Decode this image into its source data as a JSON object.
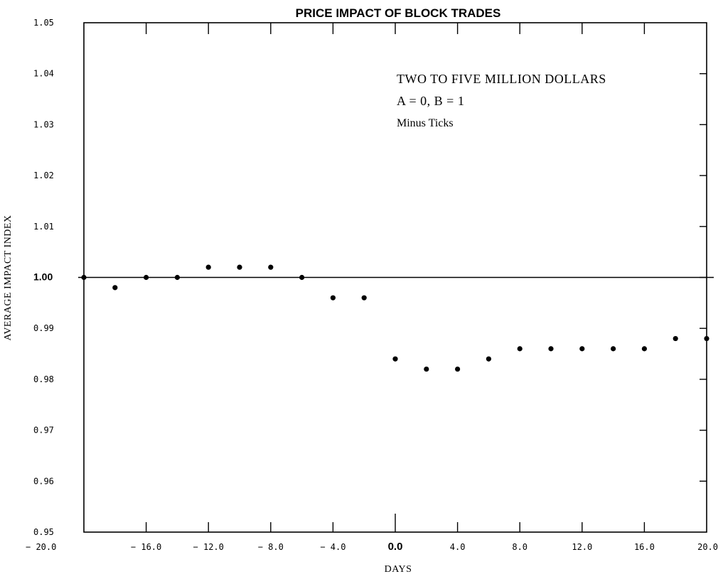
{
  "chart_data": {
    "type": "scatter",
    "title": "PRICE IMPACT OF BLOCK TRADES",
    "xlabel": "DAYS",
    "ylabel": "AVERAGE IMPACT INDEX",
    "xlim": [
      -20,
      20
    ],
    "ylim": [
      0.95,
      1.05
    ],
    "grid": false,
    "reference_line_y": 1.0,
    "x_ticks": [
      -20,
      -16,
      -12,
      -8,
      -4,
      0,
      4,
      8,
      12,
      16,
      20
    ],
    "x_tick_labels": [
      "− 20.0",
      "− 16.0",
      "− 12.0",
      "− 8.0",
      "− 4.0",
      "0.0",
      "4.0",
      "8.0",
      "12.0",
      "16.0",
      "20.0"
    ],
    "y_ticks": [
      0.95,
      0.96,
      0.97,
      0.98,
      0.99,
      1.0,
      1.01,
      1.02,
      1.03,
      1.04,
      1.05
    ],
    "y_tick_labels": [
      "0.95",
      "0.96",
      "0.97",
      "0.98",
      "0.99",
      "1.00",
      "1.01",
      "1.02",
      "1.03",
      "1.04",
      "1.05"
    ],
    "annotations": [
      "TWO  TO  FIVE  MILLION  DOLLARS",
      "A = 0,    B = 1",
      "Minus Ticks"
    ],
    "series": [
      {
        "x": [
          -20,
          -18,
          -16,
          -14,
          -12,
          -10,
          -8,
          -6,
          -4,
          -2,
          0,
          2,
          4,
          6,
          8,
          10,
          12,
          14,
          16,
          18,
          20
        ],
        "y": [
          1.0,
          0.998,
          1.0,
          1.0,
          1.002,
          1.002,
          1.002,
          1.0,
          0.996,
          0.996,
          0.984,
          0.982,
          0.982,
          0.984,
          0.986,
          0.986,
          0.986,
          0.986,
          0.986,
          0.988,
          0.988
        ]
      }
    ]
  }
}
